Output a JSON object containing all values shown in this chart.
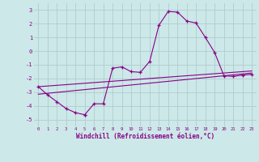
{
  "xlabel": "Windchill (Refroidissement éolien,°C)",
  "bg_color": "#cce8e8",
  "grid_color": "#b0cccc",
  "line_color": "#880088",
  "xlim": [
    -0.5,
    23.5
  ],
  "ylim": [
    -5.5,
    3.5
  ],
  "yticks": [
    -5,
    -4,
    -3,
    -2,
    -1,
    0,
    1,
    2,
    3
  ],
  "line1_x": [
    0,
    1,
    2,
    3,
    4,
    5,
    5,
    6,
    7,
    8,
    9,
    10,
    11,
    12,
    13,
    14,
    15,
    16,
    17,
    18,
    19,
    20,
    21,
    22,
    23
  ],
  "line1_y": [
    -2.6,
    -3.2,
    -3.7,
    -4.2,
    -4.5,
    -4.65,
    -4.65,
    -3.85,
    -3.85,
    -1.25,
    -1.15,
    -1.5,
    -1.55,
    -0.75,
    1.9,
    2.9,
    2.85,
    2.2,
    2.05,
    1.0,
    -0.1,
    -1.8,
    -1.85,
    -1.75,
    -1.7
  ],
  "line2_x": [
    0,
    23
  ],
  "line2_y": [
    -3.15,
    -1.6
  ],
  "line3_x": [
    0,
    23
  ],
  "line3_y": [
    -2.6,
    -1.45
  ]
}
